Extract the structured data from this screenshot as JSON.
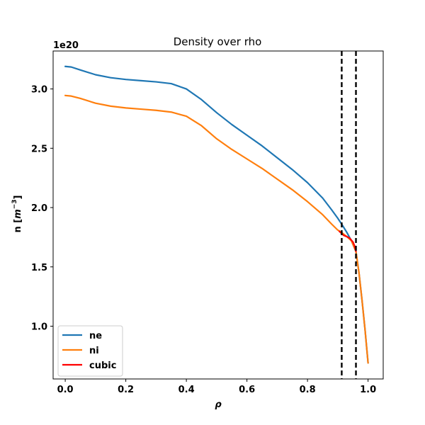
{
  "chart_data": {
    "type": "line",
    "title": "Density over rho",
    "xlabel": "ρ",
    "ylabel_main": "n [",
    "ylabel_unit_base": "m",
    "ylabel_unit_exp": "−3",
    "ylabel_close": "]",
    "y_offset_label": "1e20",
    "xlim": [
      -0.04,
      1.05
    ],
    "ylim": [
      0.555,
      3.32
    ],
    "x_ticks": [
      0.0,
      0.2,
      0.4,
      0.6,
      0.8,
      1.0
    ],
    "x_tick_labels": [
      "0.0",
      "0.2",
      "0.4",
      "0.6",
      "0.8",
      "1.0"
    ],
    "y_ticks": [
      1.0,
      1.5,
      2.0,
      2.5,
      3.0
    ],
    "y_tick_labels": [
      "1.0",
      "1.5",
      "2.0",
      "2.5",
      "3.0"
    ],
    "vlines": [
      0.913,
      0.96
    ],
    "legend_position": "lower-left",
    "series": [
      {
        "name": "ne",
        "color": "#1f77b4",
        "x": [
          0.0,
          0.02,
          0.05,
          0.1,
          0.15,
          0.2,
          0.25,
          0.3,
          0.35,
          0.4,
          0.45,
          0.5,
          0.55,
          0.6,
          0.65,
          0.7,
          0.75,
          0.8,
          0.85,
          0.88,
          0.9,
          0.913,
          0.93,
          0.945,
          0.96,
          0.97,
          0.98,
          0.99,
          1.0
        ],
        "y": [
          3.19,
          3.185,
          3.16,
          3.12,
          3.095,
          3.08,
          3.07,
          3.06,
          3.045,
          3.0,
          2.91,
          2.8,
          2.7,
          2.61,
          2.52,
          2.42,
          2.32,
          2.21,
          2.08,
          1.98,
          1.91,
          1.86,
          1.79,
          1.72,
          1.63,
          1.45,
          1.22,
          0.97,
          0.69
        ]
      },
      {
        "name": "ni",
        "color": "#ff7f0e",
        "x": [
          0.0,
          0.02,
          0.05,
          0.1,
          0.15,
          0.2,
          0.25,
          0.3,
          0.35,
          0.4,
          0.45,
          0.5,
          0.55,
          0.6,
          0.65,
          0.7,
          0.75,
          0.8,
          0.85,
          0.88,
          0.9,
          0.913,
          0.93,
          0.945,
          0.96,
          0.97,
          0.98,
          0.99,
          1.0
        ],
        "y": [
          2.945,
          2.94,
          2.92,
          2.88,
          2.855,
          2.84,
          2.83,
          2.82,
          2.805,
          2.77,
          2.69,
          2.58,
          2.49,
          2.41,
          2.33,
          2.24,
          2.15,
          2.05,
          1.94,
          1.86,
          1.81,
          1.79,
          1.755,
          1.72,
          1.63,
          1.45,
          1.22,
          0.97,
          0.69
        ]
      },
      {
        "name": "cubic",
        "color": "#ff0000",
        "x": [
          0.905,
          0.913,
          0.92,
          0.93,
          0.94,
          0.95,
          0.955,
          0.96
        ],
        "y": [
          1.8,
          1.78,
          1.765,
          1.755,
          1.74,
          1.71,
          1.68,
          1.63
        ]
      }
    ]
  }
}
